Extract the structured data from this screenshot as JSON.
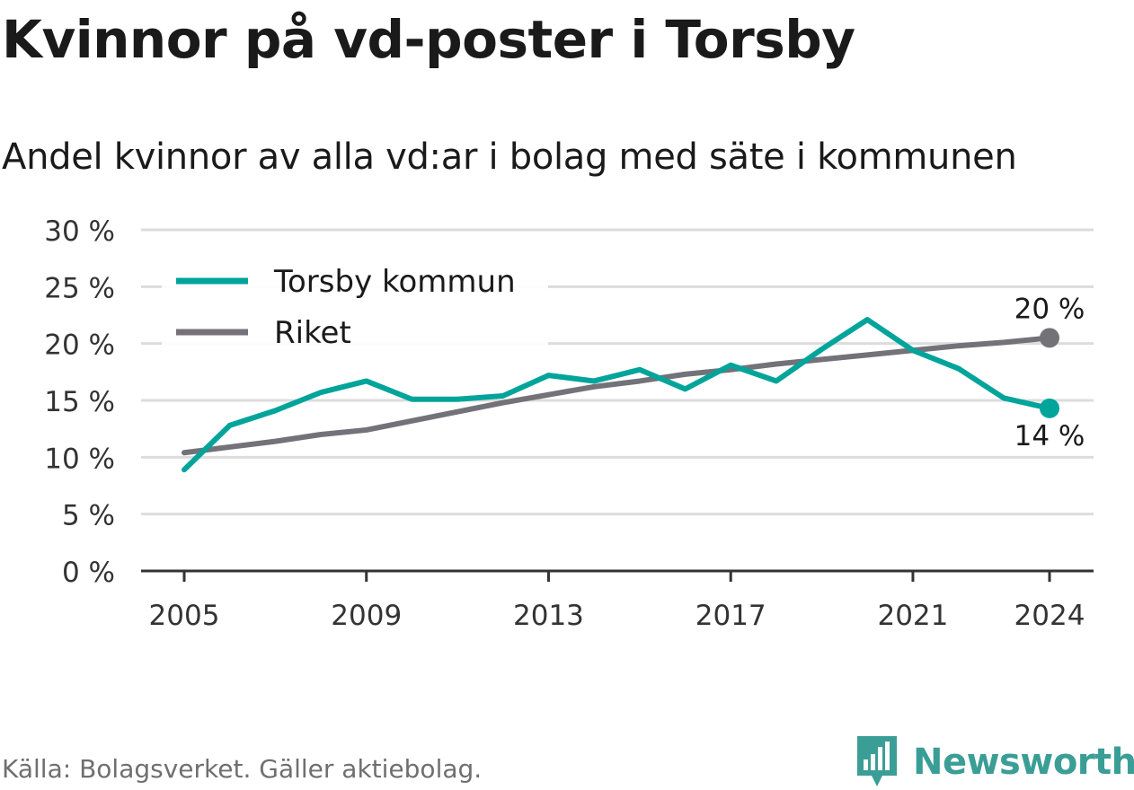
{
  "header": {
    "title": "Kvinnor på vd-poster i Torsby",
    "subtitle": "Andel kvinnor av alla vd:ar i bolag med säte i kommunen"
  },
  "footer": {
    "source": "Källa: Bolagsverket. Gäller aktiebolag.",
    "brand": "Newsworthy",
    "brand_icon": "newsworthy-logo-icon"
  },
  "colors": {
    "torsby": "#00a49a",
    "riket": "#747279",
    "grid": "#dcdcdc",
    "axis": "#333333",
    "brand": "#3b9e96"
  },
  "chart_data": {
    "type": "line",
    "x": [
      2005,
      2006,
      2007,
      2008,
      2009,
      2010,
      2011,
      2012,
      2013,
      2014,
      2015,
      2016,
      2017,
      2018,
      2019,
      2020,
      2021,
      2022,
      2023,
      2024
    ],
    "series": [
      {
        "name": "Torsby kommun",
        "values": [
          8.9,
          12.8,
          14.1,
          15.7,
          16.7,
          15.1,
          15.1,
          15.4,
          17.2,
          16.7,
          17.7,
          16.0,
          18.1,
          16.7,
          19.5,
          22.1,
          19.4,
          17.8,
          15.2,
          14.3
        ],
        "end_label": "14 %"
      },
      {
        "name": "Riket",
        "values": [
          10.4,
          10.9,
          11.4,
          12.0,
          12.4,
          13.2,
          14.0,
          14.8,
          15.5,
          16.2,
          16.7,
          17.3,
          17.7,
          18.2,
          18.6,
          19.0,
          19.4,
          19.8,
          20.1,
          20.5
        ],
        "end_label": "20 %"
      }
    ],
    "x_ticks": [
      2005,
      2009,
      2013,
      2017,
      2021,
      2024
    ],
    "x_tick_labels": [
      "2005",
      "2009",
      "2013",
      "2017",
      "2021",
      "2024"
    ],
    "y_ticks": [
      0,
      5,
      10,
      15,
      20,
      25,
      30
    ],
    "y_tick_labels": [
      "0 %",
      "5 %",
      "10 %",
      "15 %",
      "20 %",
      "25 %",
      "30 %"
    ],
    "ylim": [
      0,
      30
    ],
    "xlim": [
      2005,
      2024
    ],
    "grid": true,
    "legend_position": "top-left"
  }
}
